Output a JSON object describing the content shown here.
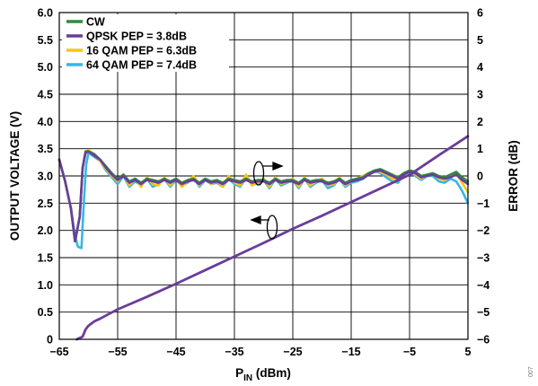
{
  "chart_data": {
    "type": "line",
    "xlabel_main": "P",
    "xlabel_sub": "IN",
    "xlabel_rest": " (dBm)",
    "ylabel_left": "OUTPUT VOLTAGE (V)",
    "ylabel_right": "ERROR (dB)",
    "side_id": "007",
    "xlim": [
      -65,
      5
    ],
    "ylim_left": [
      0,
      6
    ],
    "ylim_right": [
      -6,
      6
    ],
    "x_ticks": [
      -65,
      -55,
      -45,
      -35,
      -25,
      -15,
      -5,
      5
    ],
    "x_tick_labels": [
      "−65",
      "−55",
      "−45",
      "−35",
      "−25",
      "−15",
      "−5",
      "5"
    ],
    "y_left_ticks": [
      0,
      0.5,
      1.0,
      1.5,
      2.0,
      2.5,
      3.0,
      3.5,
      4.0,
      4.5,
      5.0,
      5.5,
      6.0
    ],
    "y_left_tick_labels": [
      "0",
      "0.5",
      "1.0",
      "1.5",
      "2.0",
      "2.5",
      "3.0",
      "3.5",
      "4.0",
      "4.5",
      "5.0",
      "5.5",
      "6.0"
    ],
    "y_right_ticks": [
      -6,
      -5,
      -4,
      -3,
      -2,
      -1,
      0,
      1,
      2,
      3,
      4,
      5,
      6
    ],
    "y_right_tick_labels": [
      "−6",
      "−5",
      "−4",
      "−3",
      "−2",
      "−1",
      "0",
      "1",
      "2",
      "3",
      "4",
      "5",
      "6"
    ],
    "grid": true,
    "legend_position": "top-left",
    "legend": [
      {
        "name": "CW",
        "color": "#2e8b3e"
      },
      {
        "name": "QPSK PEP = 3.8dB",
        "color": "#6a3d9a"
      },
      {
        "name": "16 QAM PEP = 6.3dB",
        "color": "#f5c518"
      },
      {
        "name": "64 QAM PEP = 7.4dB",
        "color": "#35b8e6"
      }
    ],
    "voltage_series": {
      "name": "Output voltage",
      "axis": "left",
      "color": "#6a3d9a",
      "x": [
        -62,
        -61,
        -60.5,
        -60,
        -59,
        -58,
        -55,
        -50,
        -45,
        -40,
        -35,
        -30,
        -25,
        -20,
        -15,
        -10,
        -5,
        0,
        5
      ],
      "y": [
        0.0,
        0.05,
        0.18,
        0.25,
        0.33,
        0.38,
        0.55,
        0.78,
        1.02,
        1.27,
        1.52,
        1.77,
        2.03,
        2.27,
        2.52,
        2.77,
        3.02,
        3.38,
        3.73
      ]
    },
    "error_series": [
      {
        "name": "CW",
        "axis": "right",
        "color": "#2e8b3e",
        "x": [
          -65,
          -64,
          -63,
          -62.3,
          -61.5,
          -61,
          -60.5,
          -60,
          -59,
          -58,
          -57,
          -56,
          -55,
          -54,
          -53,
          -52,
          -51,
          -50,
          -49,
          -48,
          -47,
          -46,
          -45,
          -44,
          -43,
          -42,
          -41,
          -40,
          -39,
          -38,
          -37,
          -36,
          -35,
          -34,
          -33,
          -32,
          -31,
          -30,
          -29,
          -28,
          -27,
          -26,
          -25,
          -24,
          -23,
          -22,
          -21,
          -20,
          -19,
          -18,
          -17,
          -16,
          -15,
          -14,
          -13,
          -12,
          -11,
          -10,
          -9,
          -8,
          -7,
          -6,
          -5,
          -4,
          -3,
          -2,
          -1,
          0,
          1,
          2,
          3,
          4,
          5
        ],
        "y": [
          0.6,
          -0.2,
          -1.2,
          -2.4,
          -1.5,
          0.3,
          0.9,
          0.9,
          0.8,
          0.6,
          0.35,
          0.1,
          -0.1,
          0.05,
          -0.2,
          -0.1,
          -0.25,
          -0.1,
          -0.15,
          -0.2,
          -0.1,
          -0.2,
          -0.1,
          -0.25,
          -0.15,
          -0.1,
          -0.25,
          -0.1,
          -0.2,
          -0.15,
          -0.25,
          -0.1,
          -0.15,
          -0.2,
          -0.1,
          -0.2,
          -0.15,
          -0.15,
          -0.25,
          -0.1,
          -0.2,
          -0.15,
          -0.15,
          -0.25,
          -0.1,
          -0.2,
          -0.15,
          -0.15,
          -0.25,
          -0.2,
          -0.1,
          -0.25,
          -0.15,
          -0.1,
          -0.05,
          0.1,
          0.2,
          0.25,
          0.15,
          0.05,
          -0.05,
          0.1,
          0.2,
          0.15,
          0.0,
          0.05,
          0.1,
          0.0,
          -0.05,
          0.05,
          0.15,
          -0.05,
          -0.2
        ]
      },
      {
        "name": "QPSK PEP = 3.8dB",
        "axis": "right",
        "color": "#6a3d9a",
        "x": [
          -65,
          -64,
          -63,
          -62.3,
          -61.5,
          -61,
          -60.5,
          -60,
          -59,
          -58,
          -57,
          -56,
          -55,
          -54,
          -53,
          -52,
          -51,
          -50,
          -49,
          -48,
          -47,
          -46,
          -45,
          -44,
          -43,
          -42,
          -41,
          -40,
          -39,
          -38,
          -37,
          -36,
          -35,
          -34,
          -33,
          -32,
          -31,
          -30,
          -29,
          -28,
          -27,
          -26,
          -25,
          -24,
          -23,
          -22,
          -21,
          -20,
          -19,
          -18,
          -17,
          -16,
          -15,
          -14,
          -13,
          -12,
          -11,
          -10,
          -9,
          -8,
          -7,
          -6,
          -5,
          -4,
          -3,
          -2,
          -1,
          0,
          1,
          2,
          3,
          4,
          5
        ],
        "y": [
          0.6,
          -0.2,
          -1.2,
          -2.4,
          -1.5,
          0.3,
          0.85,
          0.9,
          0.75,
          0.6,
          0.3,
          0.05,
          -0.15,
          0.0,
          -0.25,
          -0.15,
          -0.3,
          -0.15,
          -0.2,
          -0.25,
          -0.15,
          -0.25,
          -0.15,
          -0.3,
          -0.2,
          -0.15,
          -0.3,
          -0.15,
          -0.25,
          -0.2,
          -0.3,
          -0.15,
          -0.2,
          -0.25,
          -0.15,
          -0.25,
          -0.2,
          -0.2,
          -0.3,
          -0.15,
          -0.25,
          -0.2,
          -0.2,
          -0.3,
          -0.15,
          -0.25,
          -0.2,
          -0.2,
          -0.3,
          -0.25,
          -0.15,
          -0.3,
          -0.2,
          -0.15,
          -0.1,
          0.05,
          0.15,
          0.2,
          0.1,
          0.0,
          -0.1,
          0.05,
          0.15,
          0.1,
          -0.05,
          0.0,
          0.05,
          -0.05,
          -0.1,
          -0.05,
          0.05,
          -0.15,
          -0.3
        ]
      },
      {
        "name": "16 QAM PEP = 6.3dB",
        "axis": "right",
        "color": "#f5c518",
        "x": [
          -65,
          -64,
          -63,
          -62.3,
          -61.5,
          -61,
          -60.5,
          -60,
          -59,
          -58,
          -57,
          -56,
          -55,
          -54,
          -53,
          -52,
          -51,
          -50,
          -49,
          -48,
          -47,
          -46,
          -45,
          -44,
          -43,
          -42,
          -41,
          -40,
          -39,
          -38,
          -37,
          -36,
          -35,
          -34,
          -33,
          -32,
          -31,
          -30,
          -29,
          -28,
          -27,
          -26,
          -25,
          -24,
          -23,
          -22,
          -21,
          -20,
          -19,
          -18,
          -17,
          -16,
          -15,
          -14,
          -13,
          -12,
          -11,
          -10,
          -9,
          -8,
          -7,
          -6,
          -5,
          -4,
          -3,
          -2,
          -1,
          0,
          1,
          2,
          3,
          4,
          5
        ],
        "y": [
          0.6,
          -0.2,
          -1.2,
          -2.4,
          -1.5,
          0.3,
          0.9,
          0.95,
          0.8,
          0.55,
          0.25,
          0.0,
          -0.2,
          0.05,
          -0.35,
          -0.1,
          -0.4,
          -0.05,
          -0.3,
          -0.35,
          -0.05,
          -0.35,
          -0.1,
          -0.4,
          -0.2,
          0.0,
          -0.35,
          -0.1,
          -0.3,
          -0.2,
          -0.4,
          0.0,
          -0.25,
          -0.35,
          0.05,
          -0.35,
          -0.25,
          -0.1,
          -0.4,
          -0.05,
          -0.3,
          -0.2,
          -0.1,
          -0.4,
          -0.05,
          -0.35,
          -0.2,
          -0.1,
          -0.35,
          -0.3,
          -0.05,
          -0.35,
          -0.2,
          -0.1,
          0.0,
          0.1,
          0.2,
          0.15,
          0.05,
          -0.1,
          -0.15,
          0.1,
          0.2,
          0.05,
          -0.1,
          0.05,
          0.1,
          -0.1,
          -0.15,
          0.0,
          0.1,
          -0.25,
          -0.6
        ]
      },
      {
        "name": "64 QAM PEP = 7.4dB",
        "axis": "right",
        "color": "#35b8e6",
        "x": [
          -65,
          -64,
          -63,
          -62.3,
          -61.8,
          -61.2,
          -60.8,
          -60.4,
          -60,
          -59,
          -58,
          -57,
          -56,
          -55,
          -54,
          -53,
          -52,
          -51,
          -50,
          -49,
          -48,
          -47,
          -46,
          -45,
          -44,
          -43,
          -42,
          -41,
          -40,
          -39,
          -38,
          -37,
          -36,
          -35,
          -34,
          -33,
          -32,
          -31,
          -30,
          -29,
          -28,
          -27,
          -26,
          -25,
          -24,
          -23,
          -22,
          -21,
          -20,
          -19,
          -18,
          -17,
          -16,
          -15,
          -14,
          -13,
          -12,
          -11,
          -10,
          -9,
          -8,
          -7,
          -6,
          -5,
          -4,
          -3,
          -2,
          -1,
          0,
          1,
          2,
          3,
          4,
          5
        ],
        "y": [
          0.6,
          -0.2,
          -1.2,
          -2.2,
          -2.6,
          -2.65,
          -1.0,
          0.4,
          0.85,
          0.7,
          0.55,
          0.2,
          -0.05,
          -0.3,
          0.0,
          -0.4,
          -0.2,
          -0.35,
          -0.1,
          -0.4,
          -0.3,
          -0.1,
          -0.4,
          -0.15,
          -0.35,
          -0.25,
          -0.05,
          -0.4,
          -0.15,
          -0.3,
          -0.25,
          -0.4,
          -0.1,
          -0.3,
          -0.4,
          -0.05,
          -0.3,
          -0.3,
          -0.15,
          -0.45,
          -0.1,
          -0.35,
          -0.25,
          -0.15,
          -0.45,
          -0.1,
          -0.4,
          -0.25,
          -0.15,
          -0.45,
          -0.35,
          -0.1,
          -0.4,
          -0.25,
          -0.2,
          -0.1,
          0.05,
          0.2,
          0.1,
          -0.05,
          -0.2,
          -0.25,
          0.05,
          0.15,
          0.0,
          -0.15,
          0.0,
          0.0,
          -0.2,
          -0.25,
          -0.1,
          -0.2,
          -0.55,
          -1.0
        ]
      }
    ],
    "annotations": [
      {
        "type": "arrow",
        "direction": "right",
        "axis": "right",
        "points_to": "ERROR (dB)"
      },
      {
        "type": "arrow",
        "direction": "left",
        "axis": "left",
        "points_to": "OUTPUT VOLTAGE (V)"
      }
    ]
  }
}
